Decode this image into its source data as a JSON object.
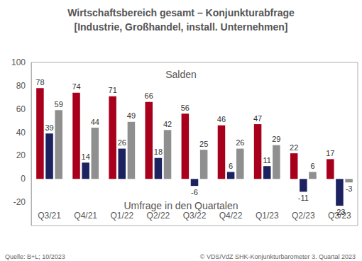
{
  "chart_data": {
    "type": "bar",
    "title": "Wirtschaftsbereich gesamt – Konjunkturabfrage",
    "subtitle": "[Industrie, Großhandel, install. Unternehmen]",
    "ylabel": "Salden",
    "xlabel": "Umfrage in den Quartalen",
    "source": "Quelle: B+L; 10/2023",
    "credit": "© VDS/VdZ SHK-Konjunkturbarometer 3. Quartal 2023",
    "categories": [
      "Q3/21",
      "Q4/21",
      "Q1/22",
      "Q2/22",
      "Q3/22",
      "Q4/22",
      "Q1/23",
      "Q2/23",
      "Q3/23"
    ],
    "series": [
      {
        "color": "#a8001c",
        "values": [
          78,
          74,
          71,
          66,
          56,
          46,
          47,
          22,
          17
        ]
      },
      {
        "color": "#1c2260",
        "values": [
          39,
          14,
          26,
          18,
          -6,
          6,
          11,
          -11,
          -23
        ]
      },
      {
        "color": "#8f8f8f",
        "values": [
          59,
          44,
          49,
          42,
          25,
          26,
          29,
          6,
          -3
        ]
      }
    ],
    "ylim": [
      -40,
      100
    ],
    "yticks": [
      -20,
      0,
      20,
      40,
      60,
      80,
      100
    ],
    "grid": false,
    "data_labels": true
  }
}
